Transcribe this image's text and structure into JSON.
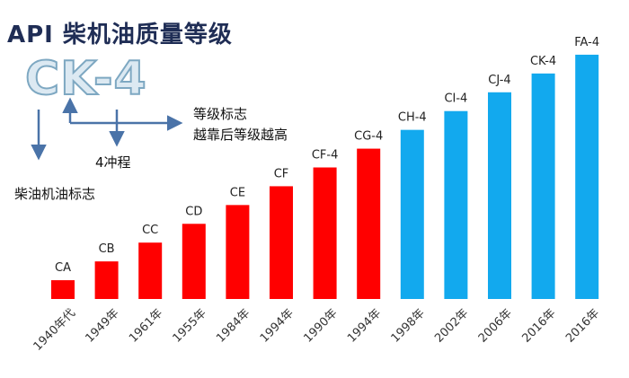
{
  "title": "API 柴机油质量等级",
  "code_example": "CK-4",
  "annotations": {
    "grade_mark": "等级标志",
    "grade_note": "越靠后等级越高",
    "stroke": "4冲程",
    "diesel_mark": "柴油机油标志"
  },
  "colors": {
    "older": "#ff0000",
    "newer": "#12a9ee",
    "arrow": "#4a73a8",
    "title": "#1f2d55"
  },
  "chart_data": {
    "type": "bar",
    "categories": [
      "1940年代",
      "1949年",
      "1961年",
      "1955年",
      "1984年",
      "1994年",
      "1990年",
      "1994年",
      "1998年",
      "2002年",
      "2006年",
      "2016年",
      "2016年"
    ],
    "data_labels": [
      "CA",
      "CB",
      "CC",
      "CD",
      "CE",
      "CF",
      "CF-4",
      "CG-4",
      "CH-4",
      "CI-4",
      "CJ-4",
      "CK-4",
      "FA-4"
    ],
    "values": [
      1,
      2,
      3,
      4,
      5,
      6,
      7,
      8,
      9,
      10,
      11,
      12,
      13
    ],
    "bar_colors": [
      "#ff0000",
      "#ff0000",
      "#ff0000",
      "#ff0000",
      "#ff0000",
      "#ff0000",
      "#ff0000",
      "#ff0000",
      "#12a9ee",
      "#12a9ee",
      "#12a9ee",
      "#12a9ee",
      "#12a9ee"
    ],
    "title": "",
    "xlabel": "",
    "ylabel": "",
    "ylim": [
      0,
      14
    ],
    "grid": false,
    "legend": "none"
  }
}
